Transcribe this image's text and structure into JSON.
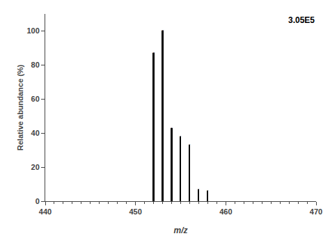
{
  "chart_data": {
    "type": "stem",
    "x": [
      452,
      453,
      454,
      455,
      456,
      457,
      458
    ],
    "values": [
      87.0,
      100.0,
      43.0,
      38.0,
      33.0,
      7.0,
      6.0
    ],
    "labels": [
      "452",
      "453",
      "454",
      "455",
      "456",
      "457",
      "458"
    ],
    "color": "#000000",
    "xlabel": "m/z",
    "ylabel": "Relative abundance (%)",
    "annotations": [
      "3.05E5"
    ],
    "xlim": [
      440,
      470
    ],
    "ylim": [
      0,
      110
    ],
    "xticks": [
      440,
      450,
      460,
      470
    ],
    "yticks": [
      0,
      20,
      40,
      60,
      80,
      100
    ],
    "grid": false
  }
}
